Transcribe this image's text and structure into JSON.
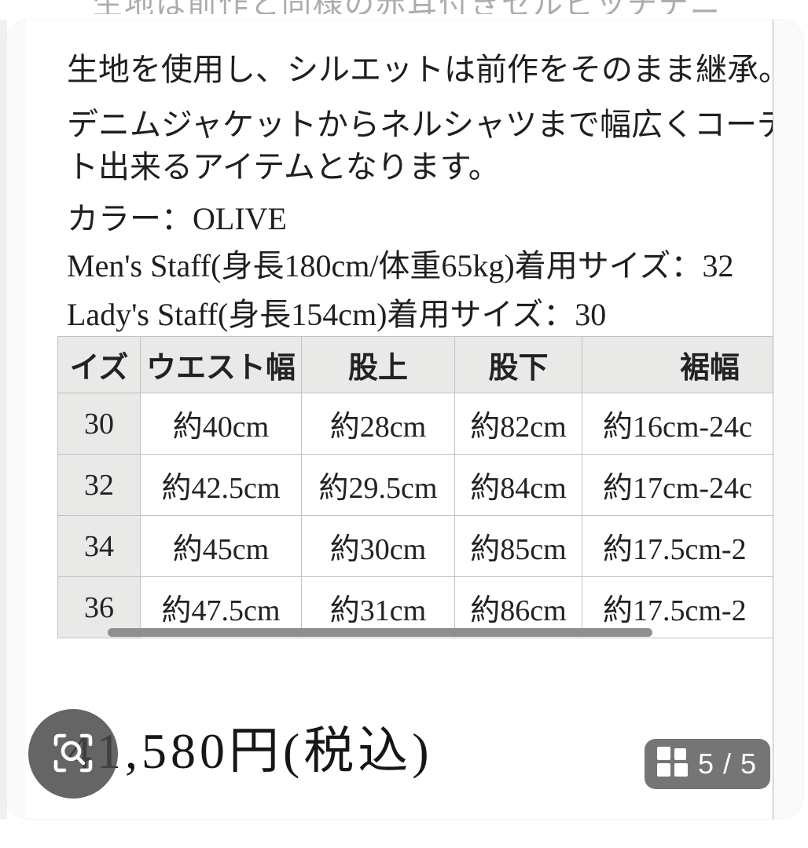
{
  "photo": {
    "top_cutoff_line": "生地は前作と同様の赤耳付きセルビッチデニムの二本。",
    "description_lines": [
      "生地を使用し、シルエットは前作をそのまま継承。",
      "デニムジャケットからネルシャツまで幅広くコーディネー",
      "ト出来るアイテムとなります。"
    ],
    "color_line": "カラー：OLIVE",
    "mens_staff_line": "Men's Staff(身長180cm/体重65kg)着用サイズ：32",
    "ladys_staff_line": "Lady's Staff(身長154cm)着用サイズ：30",
    "size_table": {
      "headers": [
        "イズ",
        "ウエスト幅",
        "股上",
        "股下",
        "裾幅"
      ],
      "rows": [
        [
          "30",
          "約40cm",
          "約28cm",
          "約82cm",
          "約16cm-24c"
        ],
        [
          "32",
          "約42.5cm",
          "約29.5cm",
          "約84cm",
          "約17cm-24c"
        ],
        [
          "34",
          "約45cm",
          "約30cm",
          "約85cm",
          "約17.5cm-2"
        ],
        [
          "36",
          "約47.5cm",
          "約31cm",
          "約86cm",
          "約17.5cm-2"
        ]
      ]
    },
    "price_line": "41,580円(税込)"
  },
  "viewer": {
    "page_indicator": "5 / 5",
    "icons": {
      "lens_button": "image-search-icon",
      "badge": "grid-icon"
    },
    "colors": {
      "overlay_button": "rgba(72,72,72,0.84)",
      "badge_background": "#6e6e6e",
      "photo_edge_line": "#b5b5b5",
      "table_header_bg": "#e9e9e7",
      "scroll_indicator": "#8f8f8f"
    }
  }
}
